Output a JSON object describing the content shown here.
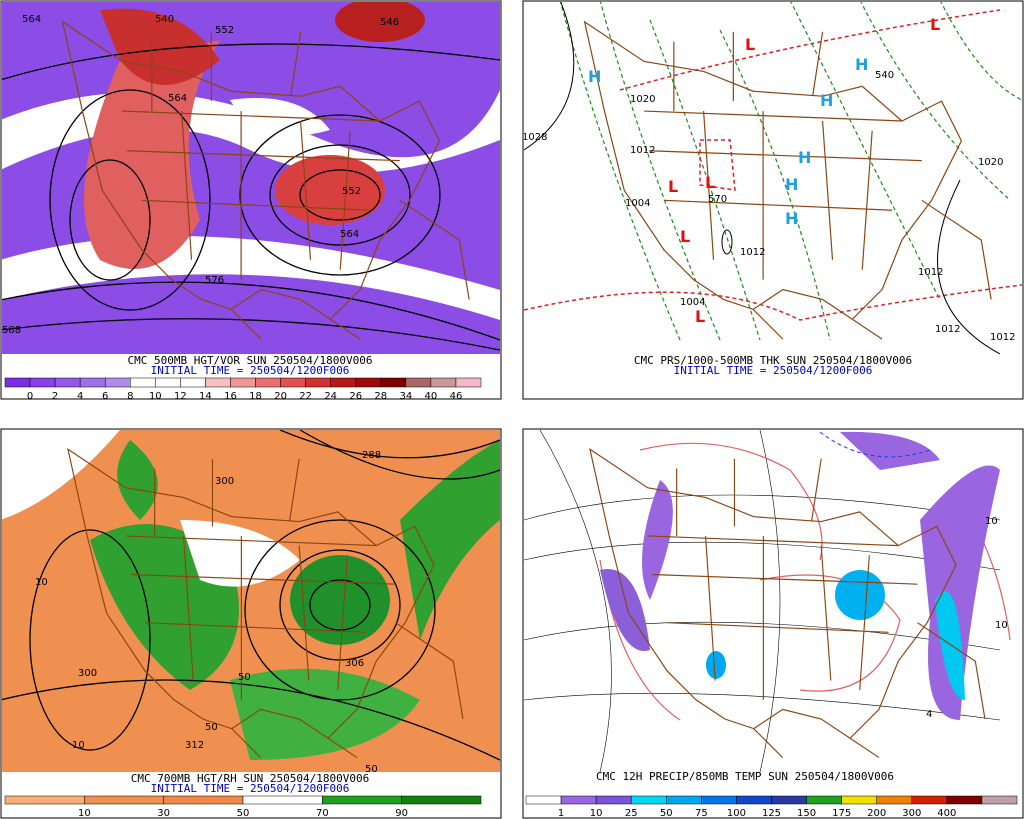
{
  "panels": [
    {
      "title": "CMC 500MB HGT/VOR SUN 250504/1800V006",
      "subtitle": "INITIAL TIME = 250504/1200F006",
      "scale": {
        "labels": [
          "0",
          "2",
          "4",
          "6",
          "8",
          "10",
          "12",
          "14",
          "16",
          "18",
          "20",
          "22",
          "24",
          "26",
          "28",
          "34",
          "40",
          "46"
        ],
        "colors": [
          "#7a30e0",
          "#8a40e6",
          "#9458e8",
          "#a070e6",
          "#b08ce8",
          "#ffffff",
          "#ffffff",
          "#ffffff",
          "#f6c0c0",
          "#f09898",
          "#e87070",
          "#e05050",
          "#d03030",
          "#b81818",
          "#a00808",
          "#800000",
          "#a86868",
          "#c89898",
          "#f0b8c8"
        ]
      },
      "labels": [
        "564",
        "552",
        "564",
        "576",
        "552",
        "564",
        "540",
        "546",
        "588"
      ]
    },
    {
      "title": "CMC PRS/1000-500MB THK SUN 250504/1800V006",
      "subtitle": "INITIAL TIME = 250504/1200F006",
      "labels": [
        "H",
        "H",
        "H",
        "H",
        "H",
        "H",
        "L",
        "L",
        "L",
        "L",
        "L",
        "L",
        "1020",
        "1028",
        "1012",
        "1012",
        "1020",
        "1004",
        "1012",
        "1004",
        "1012",
        "1012",
        "570",
        "540"
      ]
    },
    {
      "title": "CMC 700MB HGT/RH SUN 250504/1800V006",
      "subtitle": "INITIAL TIME = 250504/1200F006",
      "scale": {
        "labels": [
          "10",
          "30",
          "50",
          "70",
          "90"
        ],
        "colors": [
          "#f8b078",
          "#f09050",
          "#f08848",
          "#ffffff",
          "#20a020",
          "#108010"
        ]
      },
      "labels": [
        "10",
        "300",
        "10",
        "312",
        "50",
        "50",
        "306",
        "288",
        "300",
        "50"
      ]
    },
    {
      "title": "CMC 12H PRECIP/850MB TEMP SUN 250504/1800V006",
      "scale": {
        "labels": [
          "1",
          "10",
          "25",
          "50",
          "75",
          "100",
          "125",
          "150",
          "175",
          "200",
          "300",
          "400"
        ],
        "colors": [
          "#ffffff",
          "#9966e0",
          "#7a55d8",
          "#00d8f0",
          "#00a8f0",
          "#0078e8",
          "#1048c8",
          "#2838a0",
          "#20a020",
          "#f0e000",
          "#f08000",
          "#d02000",
          "#800000",
          "#c0a0a8"
        ]
      },
      "labels": [
        "10",
        "4",
        "10"
      ]
    }
  ]
}
